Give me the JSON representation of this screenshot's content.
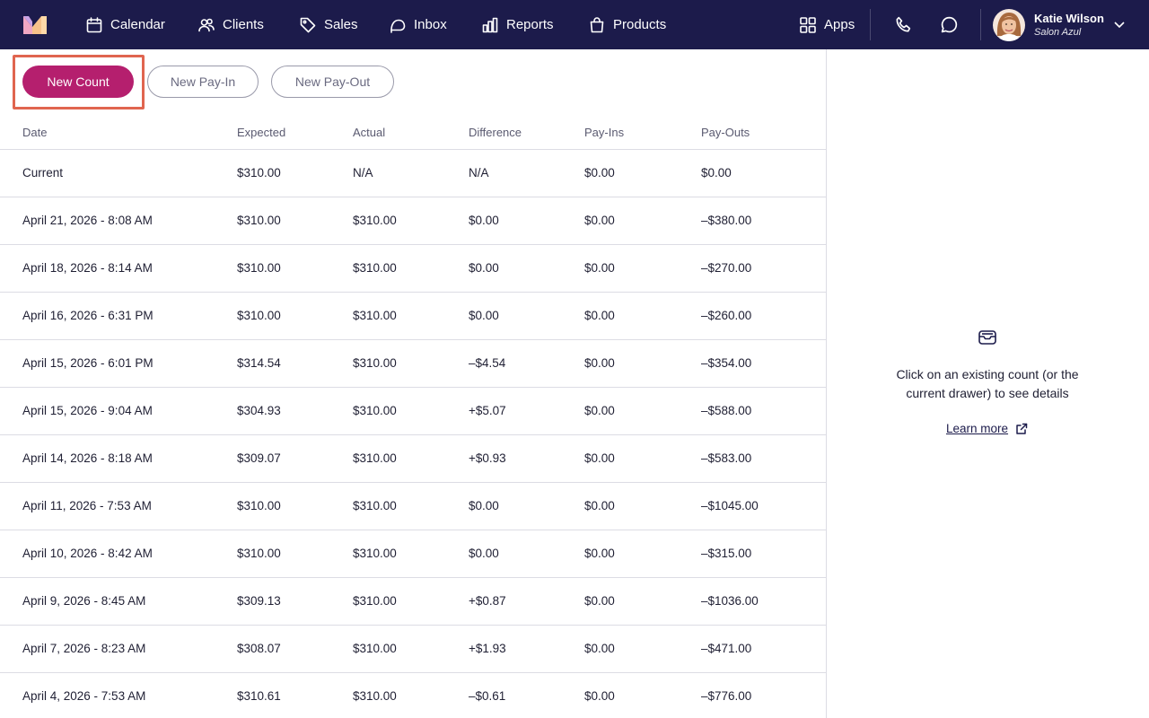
{
  "nav": {
    "items": [
      {
        "label": "Calendar",
        "icon": "calendar-icon"
      },
      {
        "label": "Clients",
        "icon": "clients-icon"
      },
      {
        "label": "Sales",
        "icon": "tag-icon"
      },
      {
        "label": "Inbox",
        "icon": "inbox-icon"
      },
      {
        "label": "Reports",
        "icon": "reports-icon"
      },
      {
        "label": "Products",
        "icon": "shopping-bag-icon"
      }
    ],
    "apps_label": "Apps",
    "user": {
      "name": "Katie Wilson",
      "business": "Salon Azul"
    }
  },
  "actions": {
    "new_count": "New Count",
    "new_pay_in": "New Pay-In",
    "new_pay_out": "New Pay-Out"
  },
  "table": {
    "headers": [
      "Date",
      "Expected",
      "Actual",
      "Difference",
      "Pay-Ins",
      "Pay-Outs"
    ],
    "rows": [
      [
        "Current",
        "$310.00",
        "N/A",
        "N/A",
        "$0.00",
        "$0.00"
      ],
      [
        "April 21, 2026 - 8:08 AM",
        "$310.00",
        "$310.00",
        "$0.00",
        "$0.00",
        "–$380.00"
      ],
      [
        "April 18, 2026 - 8:14 AM",
        "$310.00",
        "$310.00",
        "$0.00",
        "$0.00",
        "–$270.00"
      ],
      [
        "April 16, 2026 - 6:31 PM",
        "$310.00",
        "$310.00",
        "$0.00",
        "$0.00",
        "–$260.00"
      ],
      [
        "April 15, 2026 - 6:01 PM",
        "$314.54",
        "$310.00",
        "–$4.54",
        "$0.00",
        "–$354.00"
      ],
      [
        "April 15, 2026 - 9:04 AM",
        "$304.93",
        "$310.00",
        "+$5.07",
        "$0.00",
        "–$588.00"
      ],
      [
        "April 14, 2026 - 8:18 AM",
        "$309.07",
        "$310.00",
        "+$0.93",
        "$0.00",
        "–$583.00"
      ],
      [
        "April 11, 2026 - 7:53 AM",
        "$310.00",
        "$310.00",
        "$0.00",
        "$0.00",
        "–$1045.00"
      ],
      [
        "April 10, 2026 - 8:42 AM",
        "$310.00",
        "$310.00",
        "$0.00",
        "$0.00",
        "–$315.00"
      ],
      [
        "April 9, 2026 - 8:45 AM",
        "$309.13",
        "$310.00",
        "+$0.87",
        "$0.00",
        "–$1036.00"
      ],
      [
        "April 7, 2026 - 8:23 AM",
        "$308.07",
        "$310.00",
        "+$1.93",
        "$0.00",
        "–$471.00"
      ],
      [
        "April 4, 2026 - 7:53 AM",
        "$310.61",
        "$310.00",
        "–$0.61",
        "$0.00",
        "–$776.00"
      ]
    ]
  },
  "panel": {
    "message": "Click on an existing count (or the current drawer) to see details",
    "learn_more": "Learn more"
  },
  "colors": {
    "nav_bg": "#1c1b4b",
    "primary": "#b51f6e",
    "highlight": "#e0654f"
  }
}
